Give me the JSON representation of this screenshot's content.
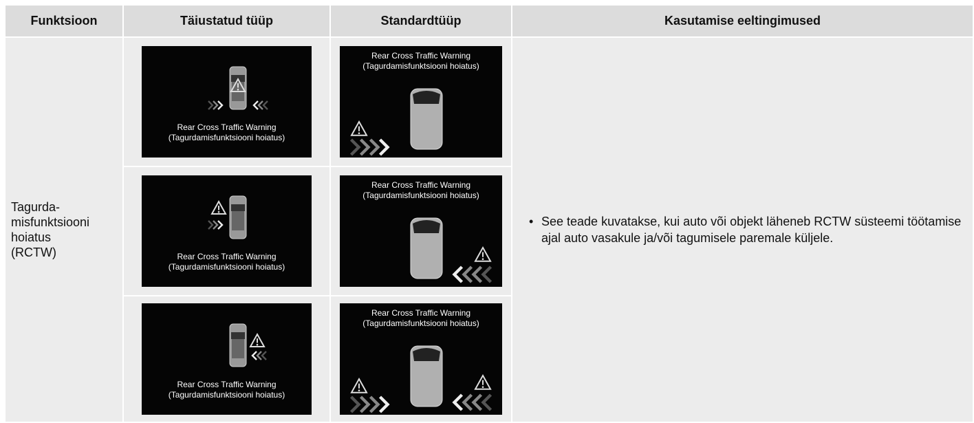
{
  "table": {
    "headers": [
      "Funktsioon",
      "Täiustatud tüüp",
      "Standardtüüp",
      "Kasutamise eeltingimused"
    ],
    "function": "Tagurda-misfunktsiooni hoiatus (RCTW)",
    "advanced": [
      {
        "title": "Rear Cross Traffic Warning",
        "subtitle": "(Tagurdamisfunktsiooni hoiatus)"
      },
      {
        "title": "Rear Cross Traffic Warning",
        "subtitle": "(Tagurdamisfunktsiooni hoiatus)"
      },
      {
        "title": "Rear Cross Traffic Warning",
        "subtitle": "(Tagurdamisfunktsiooni hoiatus)"
      }
    ],
    "standard": [
      {
        "title": "Rear Cross Traffic Warning",
        "subtitle": "(Tagurdamisfunktsiooni hoiatus)"
      },
      {
        "title": "Rear Cross Traffic Warning",
        "subtitle": "(Tagurdamisfunktsiooni hoiatus)"
      },
      {
        "title": "Rear Cross Traffic Warning",
        "subtitle": "(Tagurdamisfunktsiooni hoiatus)"
      }
    ],
    "condition": "See teade kuvatakse, kui auto või objekt läheneb RCTW süsteemi töötamise ajal auto vasakule ja/või tagumisele paremale küljele."
  }
}
